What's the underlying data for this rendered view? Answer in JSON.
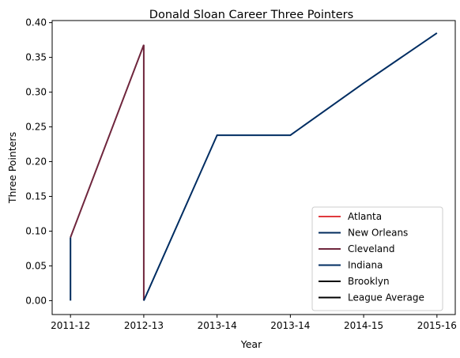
{
  "chart_data": {
    "type": "line",
    "title": "Donald Sloan  Career Three Pointers",
    "xlabel": "Year",
    "ylabel": "Three Pointers",
    "x_tick_labels": [
      "2011-12",
      "2012-13",
      "2013-14",
      "2013-14",
      "2014-15",
      "2015-16"
    ],
    "xlim": [
      -0.25,
      5.25
    ],
    "ylim": [
      -0.02,
      0.403
    ],
    "y_ticks": [
      0.0,
      0.05,
      0.1,
      0.15,
      0.2,
      0.25,
      0.3,
      0.35,
      0.4
    ],
    "y_tick_labels": [
      "0.00",
      "0.05",
      "0.10",
      "0.15",
      "0.20",
      "0.25",
      "0.30",
      "0.35",
      "0.40"
    ],
    "grid": false,
    "legend_position": "lower-right",
    "series": [
      {
        "name": "Atlanta",
        "color": "#e03a3e",
        "x": [
          0
        ],
        "y": [
          0.0
        ]
      },
      {
        "name": "New Orleans",
        "color": "#002b5c",
        "x": [
          0,
          0
        ],
        "y": [
          0.0,
          0.091
        ]
      },
      {
        "name": "Cleveland",
        "color": "#6f263d",
        "x": [
          0,
          1,
          1
        ],
        "y": [
          0.091,
          0.368,
          0.0
        ]
      },
      {
        "name": "Indiana",
        "color": "#002d62",
        "x": [
          1,
          2,
          3,
          4,
          5
        ],
        "y": [
          0.0,
          0.238,
          0.238,
          0.313,
          0.385
        ]
      },
      {
        "name": "Brooklyn",
        "color": "#000000",
        "x": [],
        "y": []
      },
      {
        "name": "League Average",
        "color": "#000000",
        "x": [],
        "y": []
      }
    ]
  }
}
